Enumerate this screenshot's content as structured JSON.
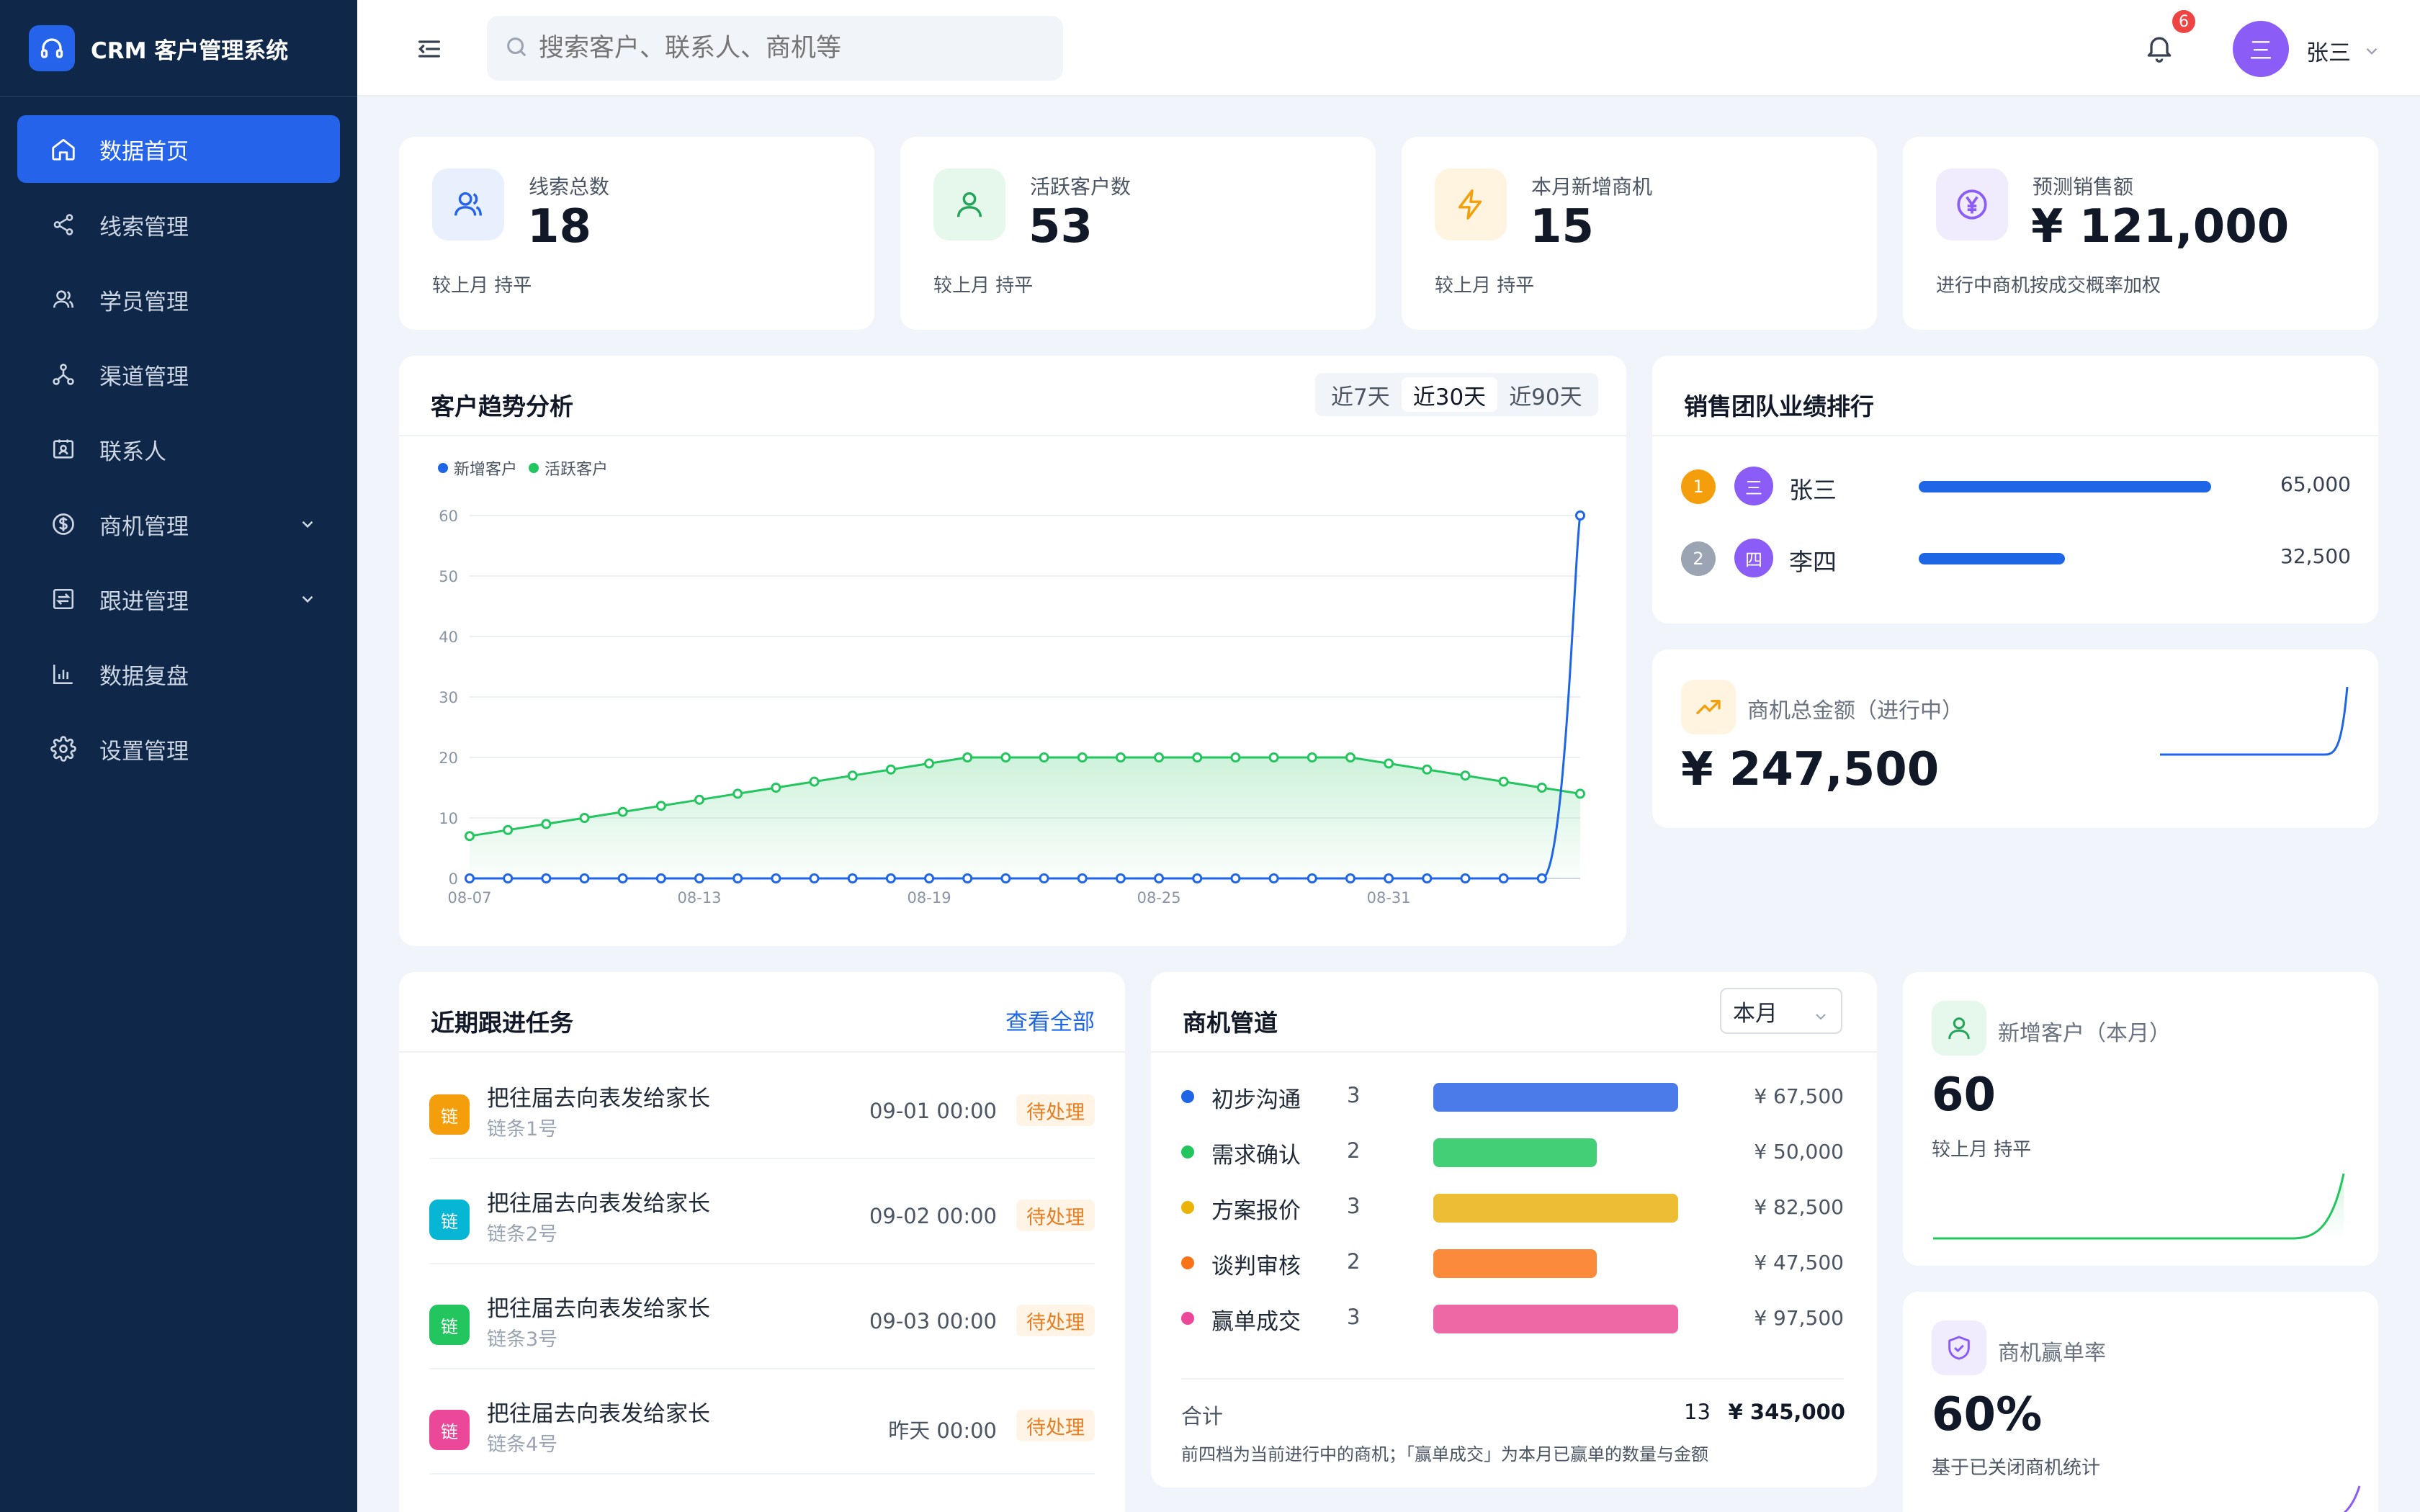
{
  "app": {
    "title": "CRM 客户管理系统"
  },
  "sidebar": {
    "items": [
      {
        "label": "数据首页",
        "icon": "home-icon",
        "active": true
      },
      {
        "label": "线索管理",
        "icon": "share-icon"
      },
      {
        "label": "学员管理",
        "icon": "users-icon"
      },
      {
        "label": "渠道管理",
        "icon": "network-icon"
      },
      {
        "label": "联系人",
        "icon": "contact-card-icon"
      },
      {
        "label": "商机管理",
        "icon": "dollar-circle-icon",
        "expandable": true
      },
      {
        "label": "跟进管理",
        "icon": "followup-icon",
        "expandable": true
      },
      {
        "label": "数据复盘",
        "icon": "bar-chart-icon"
      },
      {
        "label": "设置管理",
        "icon": "gear-icon"
      }
    ]
  },
  "header": {
    "search_placeholder": "搜索客户、联系人、商机等",
    "notification_count": "6",
    "user_avatar": "三",
    "user_name": "张三"
  },
  "stats": [
    {
      "label": "线索总数",
      "value": "18",
      "note": "较上月 持平",
      "icon": "users-icon",
      "color": "#2563eb",
      "bg": "#e8f0fe"
    },
    {
      "label": "活跃客户数",
      "value": "53",
      "note": "较上月 持平",
      "icon": "user-icon",
      "color": "#22a55a",
      "bg": "#e6f7ec"
    },
    {
      "label": "本月新增商机",
      "value": "15",
      "note": "较上月 持平",
      "icon": "lightning-icon",
      "color": "#f59e0b",
      "bg": "#fff4e0"
    },
    {
      "label": "预测销售额",
      "value": "¥ 121,000",
      "note": "进行中商机按成交概率加权",
      "icon": "yen-circle-icon",
      "color": "#8b5cf6",
      "bg": "#f0ebfd"
    }
  ],
  "trend": {
    "title": "客户趋势分析",
    "ranges": [
      "近7天",
      "近30天",
      "近90天"
    ],
    "active_range": 1
  },
  "chart_data": {
    "type": "line",
    "x": [
      "08-07",
      "08-08",
      "08-09",
      "08-10",
      "08-11",
      "08-12",
      "08-13",
      "08-14",
      "08-15",
      "08-16",
      "08-17",
      "08-18",
      "08-19",
      "08-20",
      "08-21",
      "08-22",
      "08-23",
      "08-24",
      "08-25",
      "08-26",
      "08-27",
      "08-28",
      "08-29",
      "08-30",
      "08-31",
      "09-01",
      "09-02",
      "09-03",
      "09-04",
      "09-05"
    ],
    "tick_labels": [
      "08-07",
      "08-13",
      "08-19",
      "08-25",
      "08-31"
    ],
    "yticks": [
      0,
      10,
      20,
      30,
      40,
      50,
      60
    ],
    "ylim": [
      0,
      60
    ],
    "series": [
      {
        "name": "新增客户",
        "color": "#1e66e6",
        "values": [
          0,
          0,
          0,
          0,
          0,
          0,
          0,
          0,
          0,
          0,
          0,
          0,
          0,
          0,
          0,
          0,
          0,
          0,
          0,
          0,
          0,
          0,
          0,
          0,
          0,
          0,
          0,
          0,
          0,
          60
        ]
      },
      {
        "name": "活跃客户",
        "color": "#22c55e",
        "values": [
          7,
          8,
          9,
          10,
          11,
          12,
          13,
          14,
          15,
          16,
          17,
          18,
          19,
          20,
          20,
          20,
          20,
          20,
          20,
          20,
          20,
          20,
          20,
          20,
          19,
          18,
          17,
          16,
          15,
          14
        ]
      }
    ]
  },
  "ranking": {
    "title": "销售团队业绩排行",
    "items": [
      {
        "rank": "1",
        "avatar": "三",
        "name": "张三",
        "value": "65,000",
        "amount": 65000,
        "rank_color": "#f59e0b"
      },
      {
        "rank": "2",
        "avatar": "四",
        "name": "李四",
        "value": "32,500",
        "amount": 32500,
        "rank_color": "#9aa4b3"
      }
    ],
    "max": 65000
  },
  "opportunity_total": {
    "label": "商机总金额（进行中）",
    "value": "¥ 247,500",
    "icon": "trend-up-icon"
  },
  "tasks": {
    "title": "近期跟进任务",
    "view_all": "查看全部",
    "items": [
      {
        "badge": "链",
        "title": "把往届去向表发给家长",
        "sub": "链条1号",
        "time": "09-01 00:00",
        "status": "待处理",
        "color": "#f59e0b"
      },
      {
        "badge": "链",
        "title": "把往届去向表发给家长",
        "sub": "链条2号",
        "time": "09-02 00:00",
        "status": "待处理",
        "color": "#06b6d4"
      },
      {
        "badge": "链",
        "title": "把往届去向表发给家长",
        "sub": "链条3号",
        "time": "09-03 00:00",
        "status": "待处理",
        "color": "#22c55e"
      },
      {
        "badge": "链",
        "title": "把往届去向表发给家长",
        "sub": "链条4号",
        "time": "昨天 00:00",
        "status": "待处理",
        "color": "#ec4899"
      }
    ]
  },
  "pipeline": {
    "title": "商机管道",
    "period": "本月",
    "stages": [
      {
        "name": "初步沟通",
        "count": "3",
        "amount": "¥ 67,500",
        "count_n": 3,
        "color": "#4a7be8",
        "dot": "#1e66e6"
      },
      {
        "name": "需求确认",
        "count": "2",
        "amount": "¥ 50,000",
        "count_n": 2,
        "color": "#43cf76",
        "dot": "#22c55e"
      },
      {
        "name": "方案报价",
        "count": "3",
        "amount": "¥ 82,500",
        "count_n": 3,
        "color": "#ecbd35",
        "dot": "#eab308"
      },
      {
        "name": "谈判审核",
        "count": "2",
        "amount": "¥ 47,500",
        "count_n": 2,
        "color": "#fb8b3a",
        "dot": "#f97316"
      },
      {
        "name": "赢单成交",
        "count": "3",
        "amount": "¥ 97,500",
        "count_n": 3,
        "color": "#ef68a6",
        "dot": "#ec4899"
      }
    ],
    "total_label": "合计",
    "total_count": "13",
    "total_amount": "¥ 345,000",
    "note": "前四档为当前进行中的商机；「赢单成交」为本月已赢单的数量与金额"
  },
  "new_customers": {
    "label": "新增客户（本月）",
    "value": "60",
    "note": "较上月 持平",
    "icon": "user-icon"
  },
  "win_rate": {
    "label": "商机赢单率",
    "value": "60%",
    "note": "基于已关闭商机统计",
    "icon": "shield-check-icon"
  }
}
